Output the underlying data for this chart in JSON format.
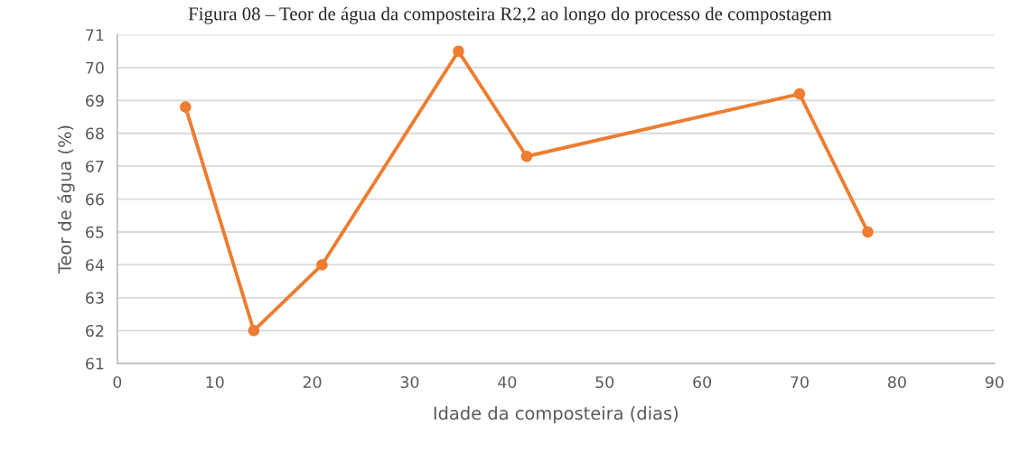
{
  "chart_data": {
    "type": "line",
    "title": "Figura 08 – Teor de água da composteira R2,2 ao longo do processo de compostagem",
    "xlabel": "Idade da composteira (dias)",
    "ylabel": "Teor de água (%)",
    "x": [
      7,
      14,
      21,
      35,
      42,
      70,
      77
    ],
    "series": [
      {
        "color": "#ed7d31",
        "values": [
          68.8,
          62,
          64,
          70.5,
          67.3,
          69.2,
          65
        ]
      }
    ],
    "xlim": [
      0,
      90
    ],
    "xticks": [
      0,
      10,
      20,
      30,
      40,
      50,
      60,
      70,
      80,
      90
    ],
    "ylim": [
      61,
      71
    ],
    "yticks": [
      61,
      62,
      63,
      64,
      65,
      66,
      67,
      68,
      69,
      70,
      71
    ],
    "grid": "y",
    "marker": "circle",
    "line_style": "solid"
  }
}
